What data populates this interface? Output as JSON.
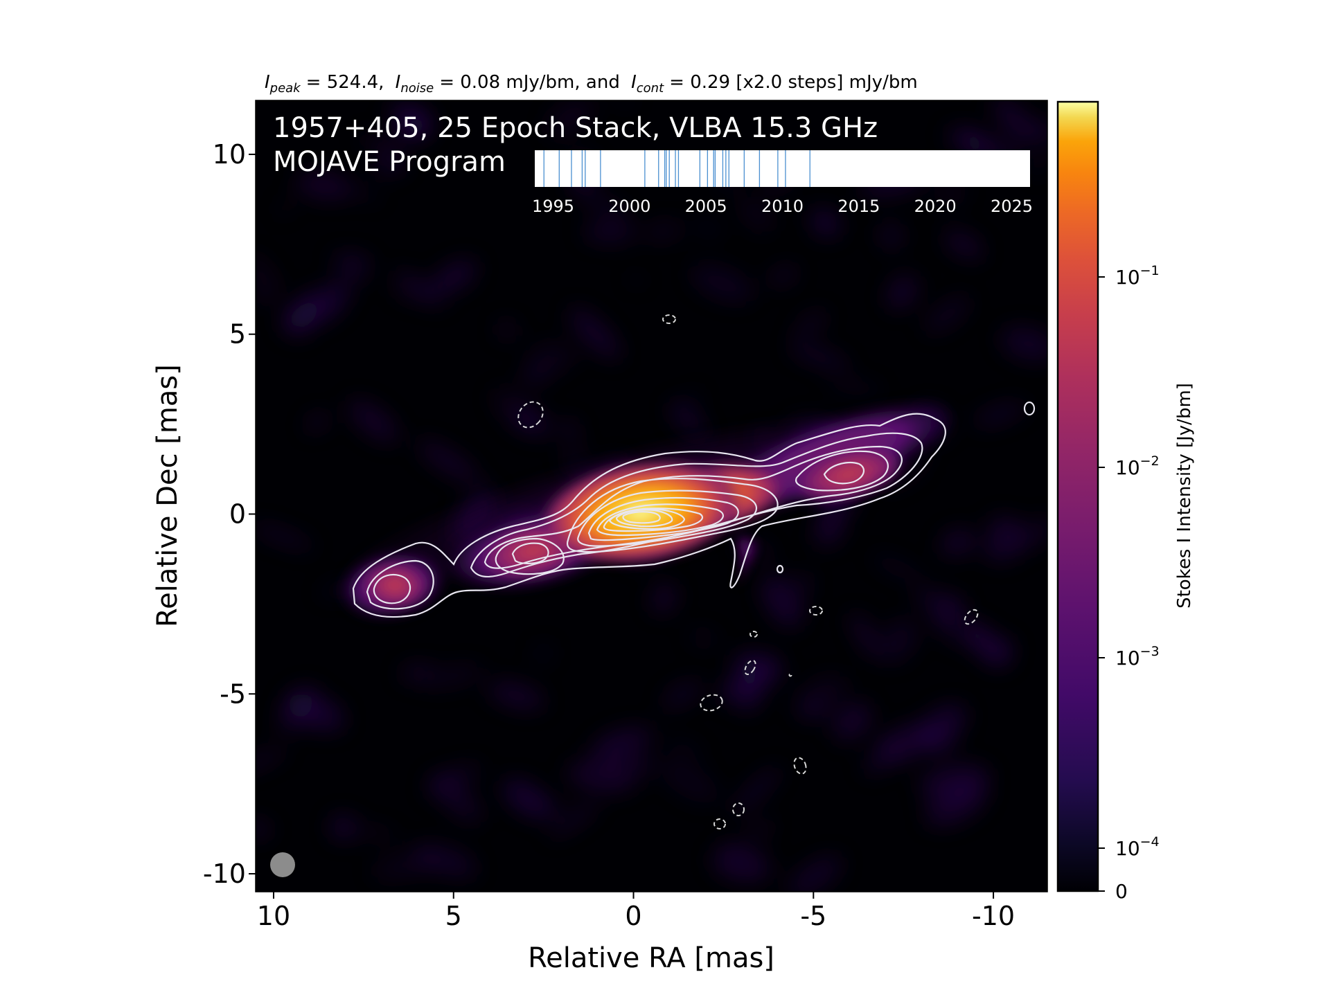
{
  "header": {
    "peak_label": "I",
    "peak_sub": "peak",
    "peak_value": "= 524.4,",
    "noise_label": "I",
    "noise_sub": "noise",
    "noise_value": "= 0.08 mJy/bm, and",
    "cont_label": "I",
    "cont_sub": "cont",
    "cont_value": "= 0.29 [x2.0 steps] mJy/bm"
  },
  "overlay": {
    "title_line1": "1957+405, 25 Epoch Stack, VLBA 15.3 GHz",
    "title_line2": "MOJAVE Program"
  },
  "colors": {
    "epoch_line": "#4a8fd0",
    "contour": "#e8e6f0",
    "beam": "#8c8c8c",
    "background": "#000004"
  },
  "chart_data": [
    {
      "type": "heatmap",
      "xlabel": "Relative RA [mas]",
      "ylabel": "Relative Dec [mas]",
      "xlim": [
        10.5,
        -11.5
      ],
      "ylim": [
        -10.5,
        11.5
      ],
      "x_ticks": [
        10,
        5,
        0,
        -5,
        -10
      ],
      "x_tick_labels": [
        "10",
        "5",
        "0",
        "-5",
        "-10"
      ],
      "y_ticks": [
        10,
        5,
        0,
        -5,
        -10
      ],
      "y_tick_labels": [
        "10",
        "5",
        "0",
        "-5",
        "-10"
      ],
      "colormap": "inferno",
      "color_scale": "log",
      "colorbar": {
        "label": "Stokes I Intensity [Jy/bm]",
        "range": [
          0,
          0.5244
        ],
        "tick_values": [
          0.1,
          0.01,
          0.001,
          0.0001,
          0
        ],
        "tick_labels": [
          {
            "base": "10",
            "exp": "−1"
          },
          {
            "base": "10",
            "exp": "−2"
          },
          {
            "base": "10",
            "exp": "−3"
          },
          {
            "base": "10",
            "exp": "−4"
          },
          {
            "base": "0",
            "exp": ""
          }
        ]
      },
      "components": [
        {
          "ra": 0.0,
          "dec": 0.0,
          "peak_jy": 0.5244
        },
        {
          "ra": -2.2,
          "dec": 0.3,
          "peak_jy": 0.05
        },
        {
          "ra": 3.1,
          "dec": -1.1,
          "peak_jy": 0.006
        },
        {
          "ra": 6.6,
          "dec": -2.1,
          "peak_jy": 0.004
        },
        {
          "ra": -5.9,
          "dec": 1.1,
          "peak_jy": 0.008
        },
        {
          "ra": -8.2,
          "dec": 1.9,
          "peak_jy": 0.002
        }
      ],
      "contours": {
        "lowest_mjy_bm": 0.29,
        "step_factor": 2.0
      },
      "beam": {
        "major_mas": 0.7,
        "minor_mas": 0.7,
        "pa_deg": 0,
        "position": "bottom-left"
      }
    },
    {
      "type": "line",
      "description_role": "epoch timeline inset",
      "xlim": [
        1993.8,
        2026.2
      ],
      "x_ticks": [
        1995,
        2000,
        2005,
        2010,
        2015,
        2020,
        2025
      ],
      "x_tick_labels": [
        "1995",
        "2000",
        "2005",
        "2010",
        "2015",
        "2020",
        "2025"
      ],
      "epochs": [
        1994.4,
        1995.4,
        1996.2,
        1996.9,
        1997.1,
        1998.1,
        2001.0,
        2001.9,
        2002.3,
        2002.4,
        2002.6,
        2003.0,
        2003.2,
        2004.6,
        2005.1,
        2005.5,
        2005.6,
        2006.1,
        2006.3,
        2006.5,
        2007.5,
        2008.5,
        2009.7,
        2010.2,
        2011.8
      ]
    }
  ]
}
